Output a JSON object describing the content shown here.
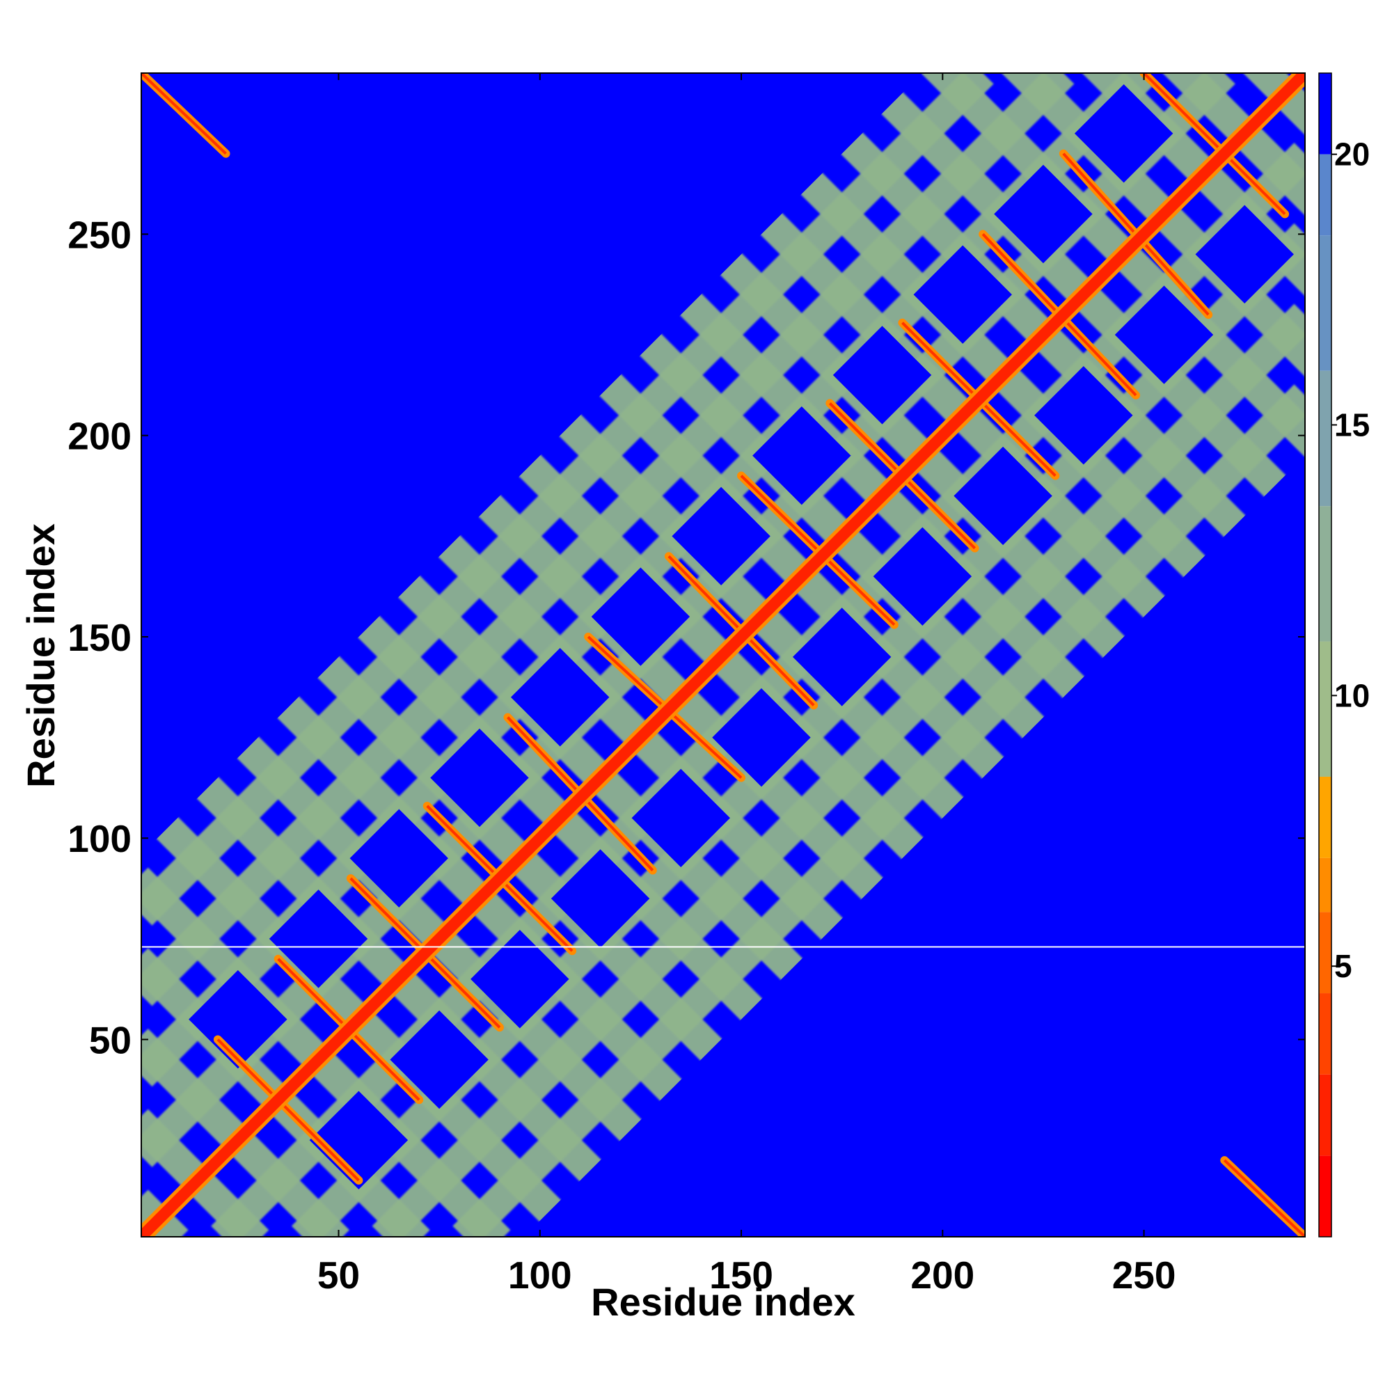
{
  "chart_data": {
    "type": "heatmap",
    "title": "",
    "xlabel": "Residue index",
    "ylabel": "Residue index",
    "xlim": [
      1,
      290
    ],
    "ylim": [
      1,
      290
    ],
    "x_ticks": [
      50,
      100,
      150,
      200,
      250
    ],
    "y_ticks": [
      50,
      100,
      150,
      200,
      250
    ],
    "colorbar": {
      "range": [
        0,
        21.5
      ],
      "ticks": [
        5,
        10,
        15,
        20
      ],
      "colors": [
        "#ff0000",
        "#ff3300",
        "#ff6600",
        "#ff8c00",
        "#ffa500",
        "#8fb98a",
        "#9db88c",
        "#7fa5b0",
        "#5a8fc8",
        "#0000ff"
      ]
    },
    "background_color": "#0000ff",
    "diagonal_color": "#ff2200",
    "hline_at_residue": 73,
    "features": {
      "main_diagonal": {
        "from": 1,
        "to": 290
      },
      "antiparallel_orange_strands": [
        {
          "x": [
            20,
            55
          ],
          "y": [
            50,
            15
          ]
        },
        {
          "x": [
            35,
            70
          ],
          "y": [
            70,
            35
          ]
        },
        {
          "x": [
            53,
            90
          ],
          "y": [
            90,
            53
          ]
        },
        {
          "x": [
            72,
            108
          ],
          "y": [
            108,
            72
          ]
        },
        {
          "x": [
            92,
            128
          ],
          "y": [
            130,
            92
          ]
        },
        {
          "x": [
            112,
            150
          ],
          "y": [
            150,
            115
          ]
        },
        {
          "x": [
            132,
            168
          ],
          "y": [
            170,
            133
          ]
        },
        {
          "x": [
            150,
            188
          ],
          "y": [
            190,
            153
          ]
        },
        {
          "x": [
            172,
            208
          ],
          "y": [
            208,
            172
          ]
        },
        {
          "x": [
            190,
            228
          ],
          "y": [
            228,
            190
          ]
        },
        {
          "x": [
            210,
            248
          ],
          "y": [
            250,
            210
          ]
        },
        {
          "x": [
            230,
            266
          ],
          "y": [
            270,
            230
          ]
        },
        {
          "x": [
            250,
            285
          ],
          "y": [
            290,
            255
          ]
        },
        {
          "x": [
            1,
            22
          ],
          "y": [
            290,
            270
          ]
        },
        {
          "x": [
            270,
            290
          ],
          "y": [
            20,
            1
          ]
        }
      ],
      "grid_band_offsets": [
        -80,
        -60,
        -40,
        -20,
        20,
        40,
        60,
        80
      ],
      "blue_square_centers": [
        [
          55,
          25
        ],
        [
          75,
          45
        ],
        [
          95,
          65
        ],
        [
          115,
          85
        ],
        [
          135,
          105
        ],
        [
          155,
          125
        ],
        [
          175,
          145
        ],
        [
          195,
          165
        ],
        [
          215,
          185
        ],
        [
          235,
          205
        ],
        [
          255,
          225
        ],
        [
          275,
          245
        ],
        [
          25,
          55
        ],
        [
          45,
          75
        ],
        [
          65,
          95
        ],
        [
          85,
          115
        ],
        [
          105,
          135
        ],
        [
          125,
          155
        ],
        [
          145,
          175
        ],
        [
          165,
          195
        ],
        [
          185,
          215
        ],
        [
          205,
          235
        ],
        [
          225,
          255
        ],
        [
          245,
          275
        ]
      ]
    }
  }
}
